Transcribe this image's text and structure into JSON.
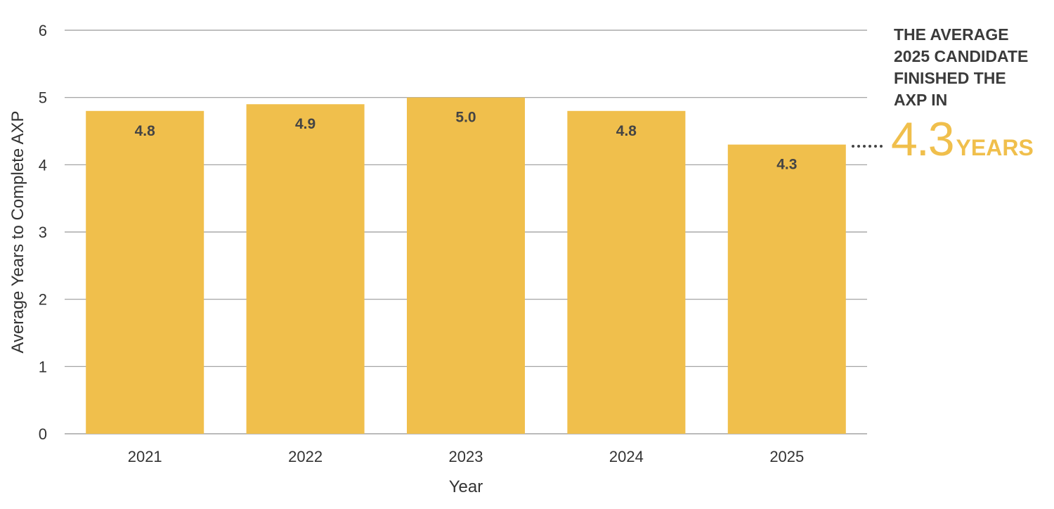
{
  "chart_data": {
    "type": "bar",
    "categories": [
      "2021",
      "2022",
      "2023",
      "2024",
      "2025"
    ],
    "values": [
      4.8,
      4.9,
      5.0,
      4.8,
      4.3
    ],
    "data_labels": [
      "4.8",
      "4.9",
      "5.0",
      "4.8",
      "4.3"
    ],
    "xlabel": "Year",
    "ylabel": "Average Years to Complete AXP",
    "ylim": [
      0,
      6
    ],
    "yticks": [
      "0",
      "1",
      "2",
      "3",
      "4",
      "5",
      "6"
    ],
    "grid": true,
    "bar_color": "#f0bf4c",
    "gridline_color": "#999999"
  },
  "callout": {
    "lines": [
      "THE AVERAGE",
      "2025 CANDIDATE",
      "FINISHED THE",
      "AXP IN"
    ],
    "value": "4.3",
    "unit": "YEARS",
    "color": "#f0bf4c",
    "text_color": "#3b3b3b"
  }
}
